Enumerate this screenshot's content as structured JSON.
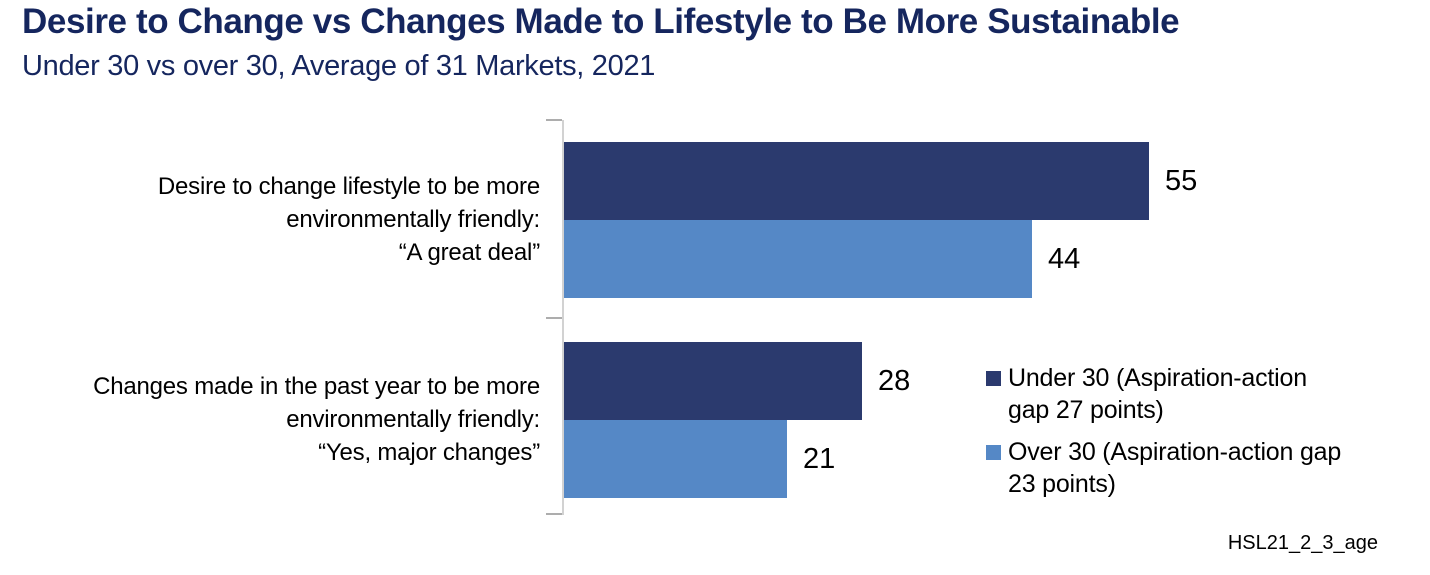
{
  "header": {
    "title": "Desire to Change vs Changes Made to Lifestyle to Be More Sustainable",
    "subtitle": "Under 30 vs over 30, Average of 31 Markets, 2021"
  },
  "colors": {
    "title_navy": "#15265E",
    "under30_bar": "#2B3A6E",
    "over30_bar": "#5588C6",
    "axis_line": "#D2D2D2",
    "tick": "#ADADAD",
    "text": "#000000"
  },
  "chart_data": {
    "type": "bar",
    "orientation": "horizontal",
    "title": "Desire to Change vs Changes Made to Lifestyle to Be More Sustainable",
    "subtitle": "Under 30 vs over 30, Average of 31 Markets, 2021",
    "categories": [
      "Desire to change lifestyle to be more environmentally friendly: “A great deal”",
      "Changes made in the past year to be more environmentally friendly: “Yes, major changes”"
    ],
    "series": [
      {
        "name": "Under 30 (Aspiration-action gap 27 points)",
        "color": "#2B3A6E",
        "values": [
          55,
          28
        ]
      },
      {
        "name": "Over 30 (Aspiration-action gap 23 points)",
        "color": "#5588C6",
        "values": [
          44,
          21
        ]
      }
    ],
    "xlim": [
      0,
      60
    ],
    "grid": false,
    "data_labels": true,
    "legend_position": "right-center",
    "axis": {
      "y_axis_line": true,
      "tick_count": 3
    }
  },
  "category_labels": {
    "cat1": {
      "line1": "Desire to change lifestyle to be more",
      "line2": "environmentally friendly:",
      "line3": "“A great deal”"
    },
    "cat2": {
      "line1": "Changes made in the past year to be more",
      "line2": "environmentally friendly:",
      "line3": "“Yes, major changes”"
    }
  },
  "legend": {
    "under30": {
      "line1": "Under 30 (Aspiration-action",
      "line2": "gap 27 points)"
    },
    "over30": {
      "line1": "Over 30 (Aspiration-action gap",
      "line2": "23 points)"
    }
  },
  "footer": {
    "code": "HSL21_2_3_age"
  }
}
